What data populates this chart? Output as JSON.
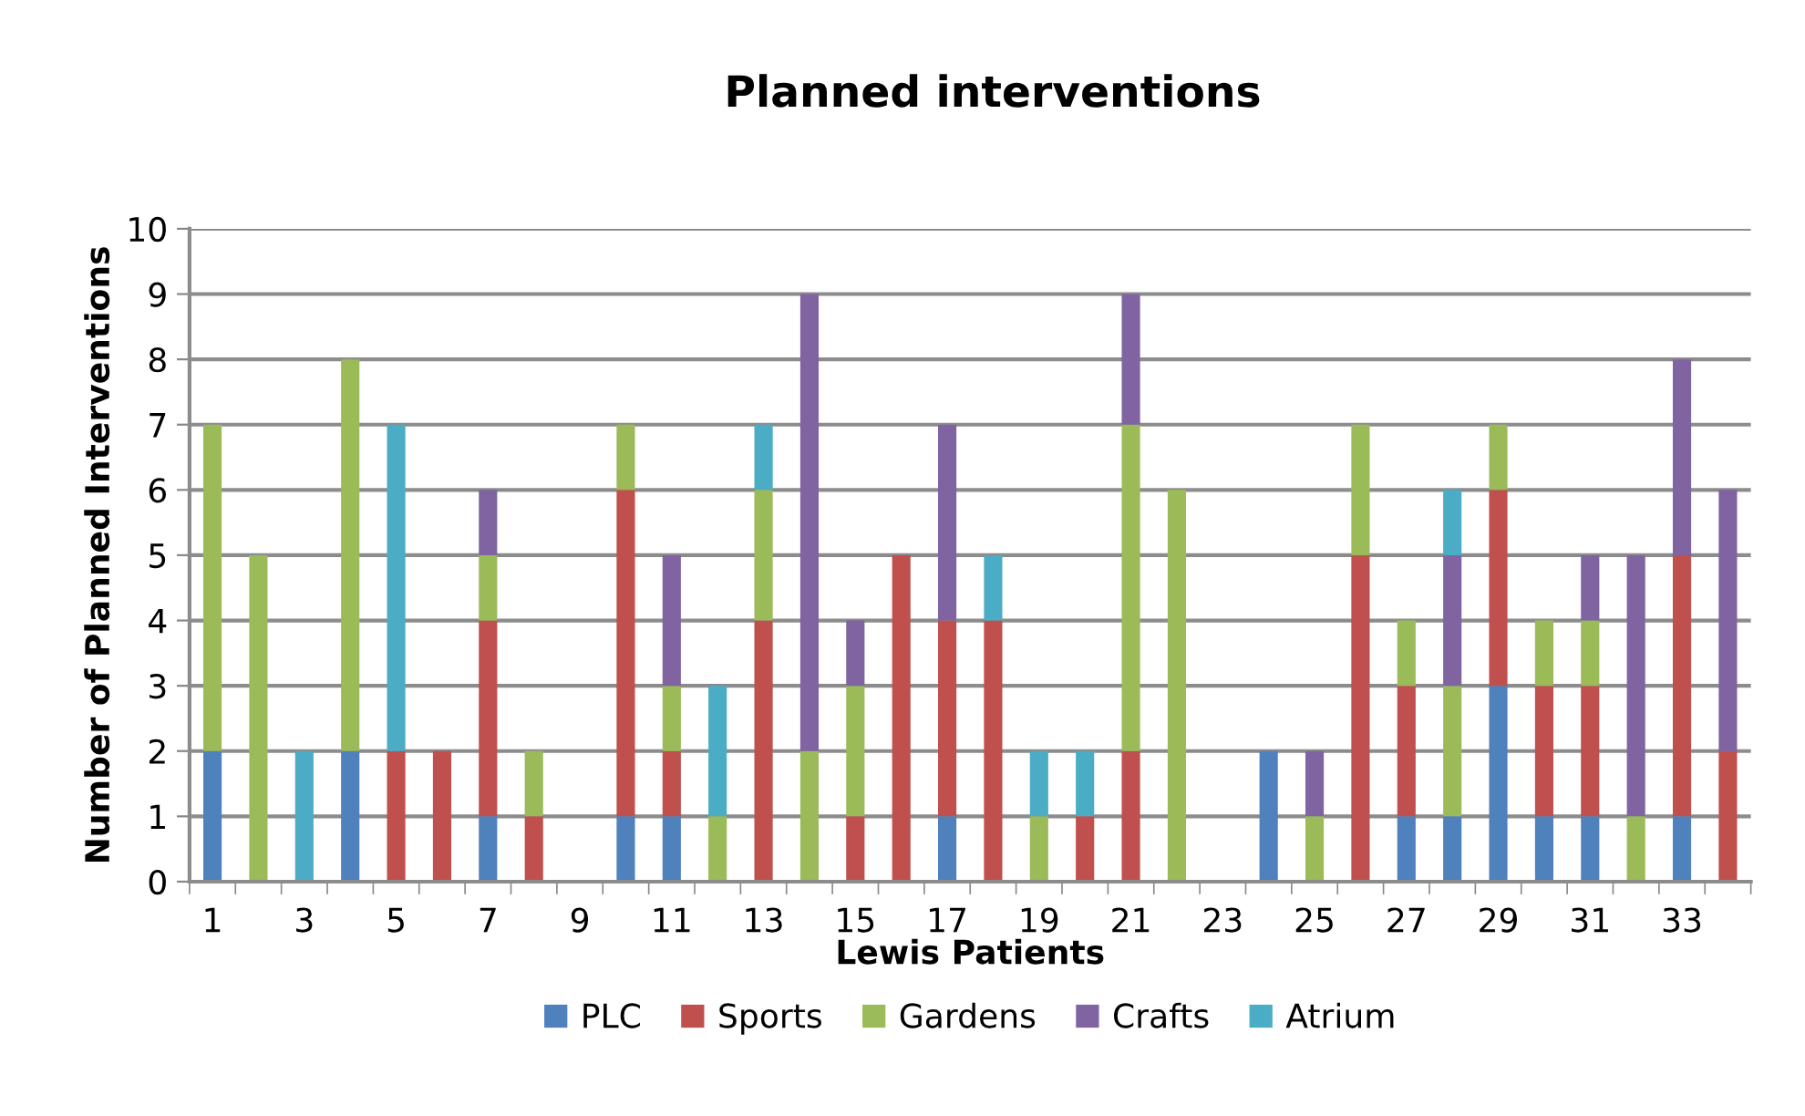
{
  "chart_data": {
    "type": "bar",
    "title": "Planned interventions",
    "xlabel": "Lewis Patients",
    "ylabel": "Number of Planned Interventions",
    "categories": [
      "1",
      null,
      "3",
      null,
      "5",
      null,
      "7",
      null,
      "9",
      null,
      "11",
      null,
      "13",
      null,
      "15",
      null,
      "17",
      null,
      "19",
      null,
      "21",
      null,
      "23",
      null,
      "25",
      null,
      "27",
      null,
      "29",
      null,
      "31",
      null,
      "33",
      null
    ],
    "stacked": true,
    "ylim": [
      0,
      10
    ],
    "yticks": [
      0,
      1,
      2,
      3,
      4,
      5,
      6,
      7,
      8,
      9,
      10
    ],
    "grid": "y",
    "legend": "bottom",
    "series": [
      {
        "name": "PLC",
        "color": "#4f81bd",
        "values": [
          2,
          0,
          0,
          2,
          0,
          0,
          1,
          0,
          0,
          1,
          1,
          0,
          0,
          0,
          0,
          0,
          1,
          0,
          0,
          0,
          0,
          0,
          0,
          2,
          0,
          0,
          1,
          1,
          3,
          1,
          1,
          0,
          1,
          0
        ]
      },
      {
        "name": "Sports",
        "color": "#c0504d",
        "values": [
          0,
          0,
          0,
          0,
          2,
          2,
          3,
          1,
          0,
          5,
          1,
          0,
          4,
          0,
          1,
          5,
          3,
          4,
          0,
          1,
          2,
          0,
          0,
          0,
          0,
          5,
          2,
          0,
          3,
          2,
          2,
          0,
          4,
          2
        ]
      },
      {
        "name": "Gardens",
        "color": "#9bbb59",
        "values": [
          5,
          5,
          0,
          6,
          0,
          0,
          1,
          1,
          0,
          1,
          1,
          1,
          2,
          2,
          2,
          0,
          0,
          0,
          1,
          0,
          5,
          6,
          0,
          0,
          1,
          2,
          1,
          2,
          1,
          1,
          1,
          1,
          0,
          0
        ]
      },
      {
        "name": "Crafts",
        "color": "#8064a2",
        "values": [
          0,
          0,
          0,
          0,
          0,
          0,
          1,
          0,
          0,
          0,
          2,
          0,
          0,
          7,
          1,
          0,
          3,
          0,
          0,
          0,
          2,
          0,
          0,
          0,
          1,
          0,
          0,
          2,
          0,
          0,
          1,
          4,
          3,
          4
        ]
      },
      {
        "name": "Atrium",
        "color": "#4bacc6",
        "values": [
          0,
          0,
          2,
          0,
          5,
          0,
          0,
          0,
          0,
          0,
          0,
          2,
          1,
          0,
          0,
          0,
          0,
          1,
          1,
          1,
          0,
          0,
          0,
          0,
          0,
          0,
          0,
          1,
          0,
          0,
          0,
          0,
          0,
          0
        ]
      }
    ]
  }
}
